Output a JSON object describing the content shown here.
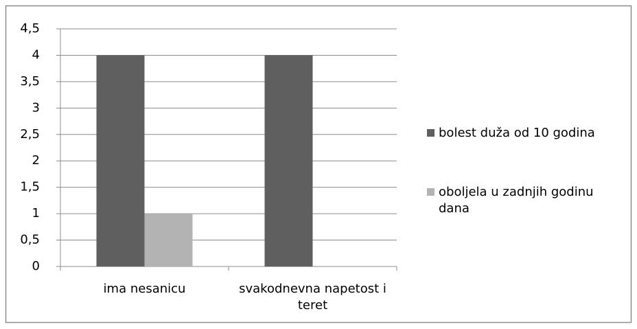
{
  "chart_data": {
    "type": "bar",
    "categories": [
      "ima nesanicu",
      "svakodnevna napetost i teret"
    ],
    "series": [
      {
        "name": "bolest duža od 10 godina",
        "color": "#5f5f5f",
        "values": [
          4,
          4
        ]
      },
      {
        "name": "oboljela u zadnjih godinu dana",
        "color": "#b3b3b3",
        "values": [
          1,
          0
        ]
      }
    ],
    "ylim": [
      0,
      4.5
    ],
    "yticks": [
      0,
      {
        "value": 0.5,
        "label": "0,5"
      },
      1,
      {
        "value": 1.5,
        "label": "1,5"
      },
      2,
      {
        "value": 2.5,
        "label": "2,5"
      },
      3,
      {
        "value": 3.5,
        "label": "3,5"
      },
      4,
      {
        "value": 4.5,
        "label": "4,5"
      }
    ],
    "grid": true,
    "legend": "right"
  }
}
